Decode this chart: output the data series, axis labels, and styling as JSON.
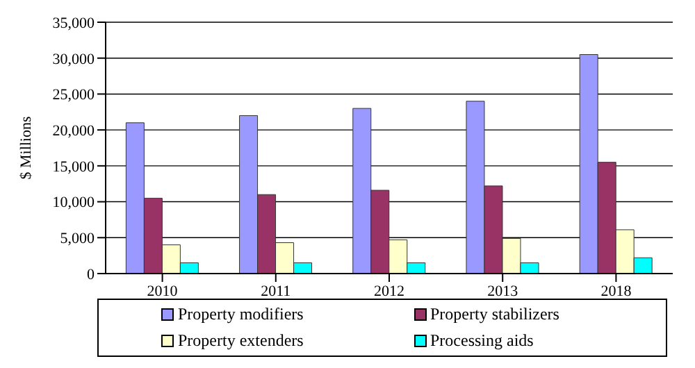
{
  "chart_data": {
    "type": "bar",
    "ylabel": "$ Millions",
    "categories": [
      "2010",
      "2011",
      "2012",
      "2013",
      "2018"
    ],
    "series": [
      {
        "name": "Property modifiers",
        "color": "#9999ff",
        "values": [
          21000,
          22000,
          23000,
          24000,
          30500
        ]
      },
      {
        "name": "Property stabilizers",
        "color": "#993366",
        "values": [
          10500,
          11000,
          11600,
          12200,
          15500
        ]
      },
      {
        "name": "Property extenders",
        "color": "#ffffcc",
        "values": [
          4000,
          4300,
          4700,
          4900,
          6100
        ]
      },
      {
        "name": "Processing aids",
        "color": "#00ffff",
        "values": [
          1500,
          1500,
          1500,
          1500,
          2200
        ]
      }
    ],
    "ylim": [
      0,
      35000
    ],
    "yticks": [
      0,
      {
        "value": 5000,
        "label": "5,000"
      },
      {
        "value": 10000,
        "label": "10,000"
      },
      {
        "value": 15000,
        "label": "15,000"
      },
      {
        "value": 20000,
        "label": "20,000"
      },
      {
        "value": 25000,
        "label": "25,000"
      },
      {
        "value": 30000,
        "label": "30,000"
      },
      {
        "value": 35000,
        "label": "35,000"
      }
    ],
    "grid": "y",
    "legend": "bottom"
  }
}
